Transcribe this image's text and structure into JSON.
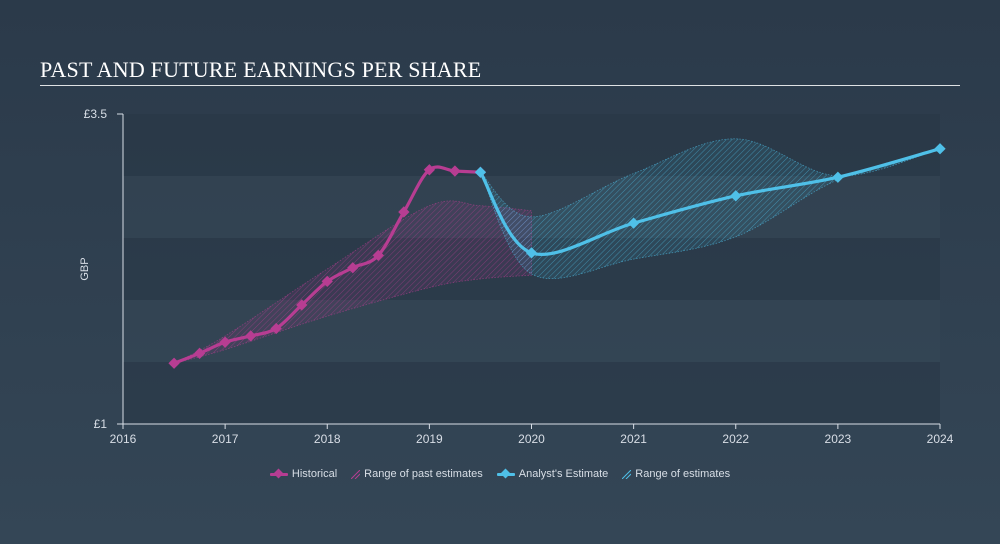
{
  "title": "PAST AND FUTURE EARNINGS PER SHARE",
  "chart_data": {
    "type": "line",
    "ylabel": "GBP",
    "ylim": [
      1,
      3.5
    ],
    "y_tick_labels": [
      "£3.5",
      "£1"
    ],
    "xlim": [
      2016,
      2024
    ],
    "x_tick_labels": [
      "2016",
      "2017",
      "2018",
      "2019",
      "2020",
      "2021",
      "2022",
      "2023",
      "2024"
    ],
    "grid": "horizontal bands",
    "legend_position": "bottom-center",
    "series": [
      {
        "name": "Historical",
        "color": "#b73d92",
        "x": [
          2016.5,
          2016.75,
          2017.0,
          2017.25,
          2017.5,
          2017.75,
          2018.0,
          2018.25,
          2018.5,
          2018.75,
          2019.0,
          2019.25,
          2019.5
        ],
        "y": [
          1.49,
          1.57,
          1.66,
          1.71,
          1.77,
          1.96,
          2.15,
          2.26,
          2.36,
          2.71,
          3.05,
          3.04,
          3.03
        ]
      },
      {
        "name": "Analyst's Estimate",
        "color": "#4fc0e8",
        "x": [
          2019.5,
          2020.0,
          2021.0,
          2022.0,
          2023.0,
          2024.0
        ],
        "y": [
          3.03,
          2.38,
          2.62,
          2.84,
          2.99,
          3.22
        ]
      }
    ],
    "ranges": [
      {
        "name": "Range of past estimates",
        "color": "#b73d92",
        "x": [
          2016.5,
          2017.0,
          2018.0,
          2019.0,
          2019.5,
          2020.0
        ],
        "low": [
          1.49,
          1.6,
          1.87,
          2.1,
          2.17,
          2.2
        ],
        "high": [
          1.49,
          1.71,
          2.25,
          2.76,
          2.76,
          2.72
        ]
      },
      {
        "name": "Range of estimates",
        "color": "#4fc0e8",
        "x": [
          2019.5,
          2020.0,
          2021.0,
          2022.0,
          2023.0,
          2024.0
        ],
        "low": [
          3.03,
          2.21,
          2.33,
          2.51,
          2.97,
          3.22
        ],
        "high": [
          3.03,
          2.67,
          3.02,
          3.3,
          3.0,
          3.22
        ]
      }
    ]
  },
  "legend": [
    {
      "label": "Historical",
      "kind": "line",
      "color": "#b73d92"
    },
    {
      "label": "Range of past estimates",
      "kind": "hatch",
      "color": "#b73d92"
    },
    {
      "label": "Analyst's Estimate",
      "kind": "line",
      "color": "#4fc0e8"
    },
    {
      "label": "Range of estimates",
      "kind": "hatch",
      "color": "#4fc0e8"
    }
  ]
}
